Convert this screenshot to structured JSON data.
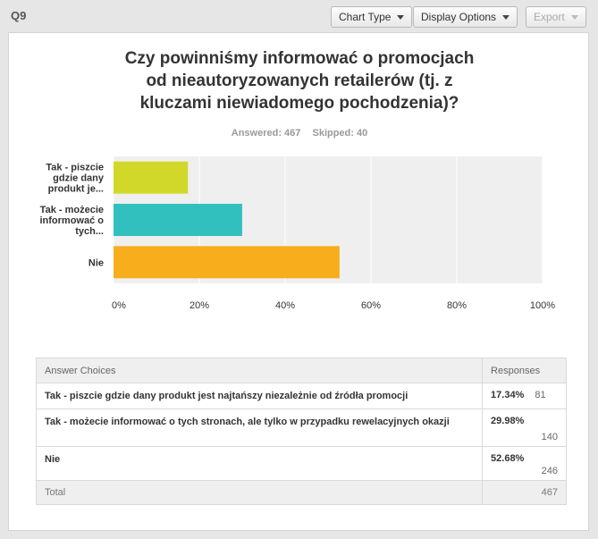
{
  "header": {
    "question_number": "Q9",
    "chart_type_label": "Chart Type",
    "display_options_label": "Display Options",
    "export_label": "Export"
  },
  "question": {
    "title_lines": [
      "Czy powinniśmy informować o promocjach",
      "od nieautoryzowanych retailerów (tj. z",
      "kluczami niewiadomego pochodzenia)?"
    ],
    "answered": "Answered: 467",
    "skipped": "Skipped: 40"
  },
  "chart_data": {
    "type": "bar",
    "orientation": "horizontal",
    "categories": [
      [
        "Tak - piszcie",
        "gdzie dany",
        "produkt je..."
      ],
      [
        "Tak - możecie",
        "informować o",
        "tych..."
      ],
      [
        "Nie"
      ]
    ],
    "values": [
      17.34,
      29.98,
      52.68
    ],
    "colors": [
      "#d2d82a",
      "#31c0bd",
      "#f8ad1d"
    ],
    "xlim": [
      0,
      100
    ],
    "ticks": [
      "0%",
      "20%",
      "40%",
      "60%",
      "80%",
      "100%"
    ],
    "tick_values": [
      0,
      20,
      40,
      60,
      80,
      100
    ],
    "grid": true,
    "title": "",
    "xlabel": "",
    "ylabel": ""
  },
  "table": {
    "headers": {
      "choice": "Answer Choices",
      "responses": "Responses"
    },
    "rows": [
      {
        "choice": "Tak - piszcie gdzie dany produkt jest najtańszy niezależnie od źródła promocji",
        "pct": "17.34%",
        "count": "81"
      },
      {
        "choice": "Tak - możecie informować o tych stronach, ale tylko w przypadku rewelacyjnych okazji",
        "pct": "29.98%",
        "count": "140"
      },
      {
        "choice": "Nie",
        "pct": "52.68%",
        "count": "246"
      }
    ],
    "total_label": "Total",
    "total_value": "467"
  }
}
